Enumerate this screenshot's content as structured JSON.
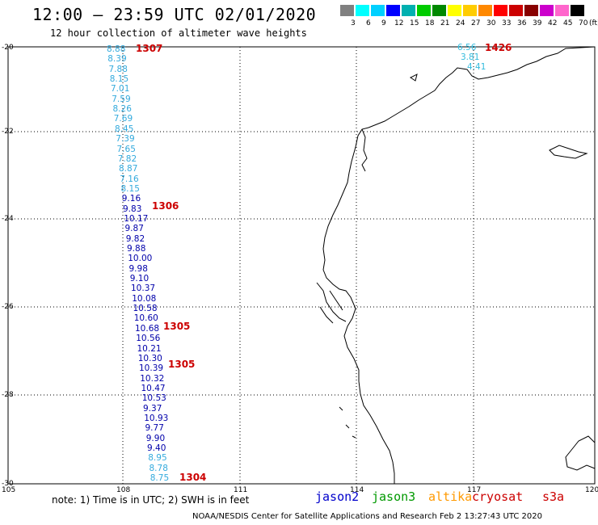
{
  "header": {
    "title": "12:00 – 23:59 UTC 02/01/2020",
    "subtitle": "12 hour collection of altimeter wave heights"
  },
  "color_scale": {
    "colors": [
      "#808080",
      "#00ffff",
      "#00d0ff",
      "#0000ff",
      "#00b0b0",
      "#00cc00",
      "#008800",
      "#ffff00",
      "#ffcc00",
      "#ff8800",
      "#ff0000",
      "#cc0000",
      "#880000",
      "#cc00cc",
      "#ff66cc",
      "#000000"
    ],
    "labels": [
      "3",
      "6",
      "9",
      "12",
      "15",
      "18",
      "21",
      "24",
      "27",
      "30",
      "33",
      "36",
      "39",
      "42",
      "45",
      "70",
      "(ft)"
    ]
  },
  "axes": {
    "lat_labels": [
      "-20",
      "-22",
      "-24",
      "-26",
      "-28",
      "-30"
    ],
    "lon_labels": [
      "105",
      "108",
      "111",
      "114",
      "117",
      "120"
    ]
  },
  "west_track": {
    "values": [
      "8.88",
      "8.39",
      "7.88",
      "8.15",
      "7.01",
      "7.59",
      "8.26",
      "7.69",
      "8.45",
      "7.39",
      "7.65",
      "7.82",
      "8.87",
      "7.16",
      "8.15",
      "9.16",
      "9.83",
      "10.17",
      "9.87",
      "9.82",
      "9.88",
      "10.00",
      "9.98",
      "9.10",
      "10.37",
      "10.08",
      "10.58",
      "10.60",
      "10.68",
      "10.56",
      "10.21",
      "10.30",
      "10.39",
      "10.32",
      "10.47",
      "10.53",
      "9.37",
      "10.93",
      "9.77",
      "9.90",
      "9.40",
      "8.95",
      "8.78",
      "8.75"
    ],
    "colors": [
      "#33aadd",
      "#33aadd",
      "#33aadd",
      "#33aadd",
      "#33aadd",
      "#33aadd",
      "#33aadd",
      "#33aadd",
      "#33aadd",
      "#33aadd",
      "#33aadd",
      "#33aadd",
      "#33aadd",
      "#33aadd",
      "#33aadd",
      "#0000aa",
      "#0000aa",
      "#0000aa",
      "#0000aa",
      "#0000aa",
      "#0000aa",
      "#0000aa",
      "#0000aa",
      "#0000aa",
      "#0000aa",
      "#0000aa",
      "#0000aa",
      "#0000aa",
      "#0000aa",
      "#0000aa",
      "#0000aa",
      "#0000aa",
      "#0000aa",
      "#0000aa",
      "#0000aa",
      "#0000aa",
      "#0000aa",
      "#0000aa",
      "#0000aa",
      "#0000aa",
      "#0000aa",
      "#33aadd",
      "#33aadd",
      "#33aadd"
    ]
  },
  "ne_track": {
    "values": [
      "6.56",
      "3.81",
      "4.41"
    ]
  },
  "pass_times": {
    "p1307": "1307",
    "p1306": "1306",
    "p1305a": "1305",
    "p1305b": "1305",
    "p1304": "1304",
    "p1426": "1426"
  },
  "footer": {
    "note": "note:  1) Time is in UTC;  2) SWH is in feet",
    "satellites": [
      {
        "name": "jason2",
        "color": "#0000cc"
      },
      {
        "name": "jason3",
        "color": "#009900"
      },
      {
        "name": "altika",
        "color": "#ff9900"
      },
      {
        "name": "cryosat",
        "color": "#cc0000"
      },
      {
        "name": "s3a",
        "color": "#cc0000"
      }
    ],
    "credit": "NOAA/NESDIS Center for Satellite Applications and Research    Feb  2 13:27:43 UTC 2020"
  }
}
